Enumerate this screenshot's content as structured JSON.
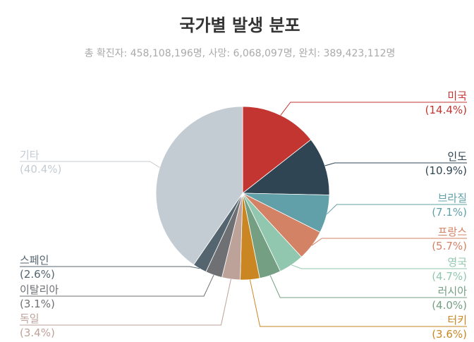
{
  "chart_data": {
    "type": "pie",
    "title": "국가별 발생 분포",
    "subtitle": "총 확진자: 458,108,196명, 사망: 6,068,097명, 완치: 389,423,112명",
    "slices": [
      {
        "name": "미국",
        "percent_label": "(14.4%)",
        "value": 14.4,
        "color": "#c23531"
      },
      {
        "name": "인도",
        "percent_label": "(10.9%)",
        "value": 10.9,
        "color": "#2f4554"
      },
      {
        "name": "브라질",
        "percent_label": "(7.1%)",
        "value": 7.1,
        "color": "#61a0a8"
      },
      {
        "name": "프랑스",
        "percent_label": "(5.7%)",
        "value": 5.7,
        "color": "#d48265"
      },
      {
        "name": "영국",
        "percent_label": "(4.7%)",
        "value": 4.7,
        "color": "#91c7ae"
      },
      {
        "name": "러시아",
        "percent_label": "(4.0%)",
        "value": 4.0,
        "color": "#749f83"
      },
      {
        "name": "터키",
        "percent_label": "(3.6%)",
        "value": 3.6,
        "color": "#ca8622"
      },
      {
        "name": "독일",
        "percent_label": "(3.4%)",
        "value": 3.4,
        "color": "#bda29a"
      },
      {
        "name": "이탈리아",
        "percent_label": "(3.1%)",
        "value": 3.1,
        "color": "#6e7074"
      },
      {
        "name": "스페인",
        "percent_label": "(2.6%)",
        "value": 2.6,
        "color": "#546570"
      },
      {
        "name": "기타",
        "percent_label": "(40.4%)",
        "value": 40.4,
        "color": "#c4ccd3"
      }
    ]
  }
}
